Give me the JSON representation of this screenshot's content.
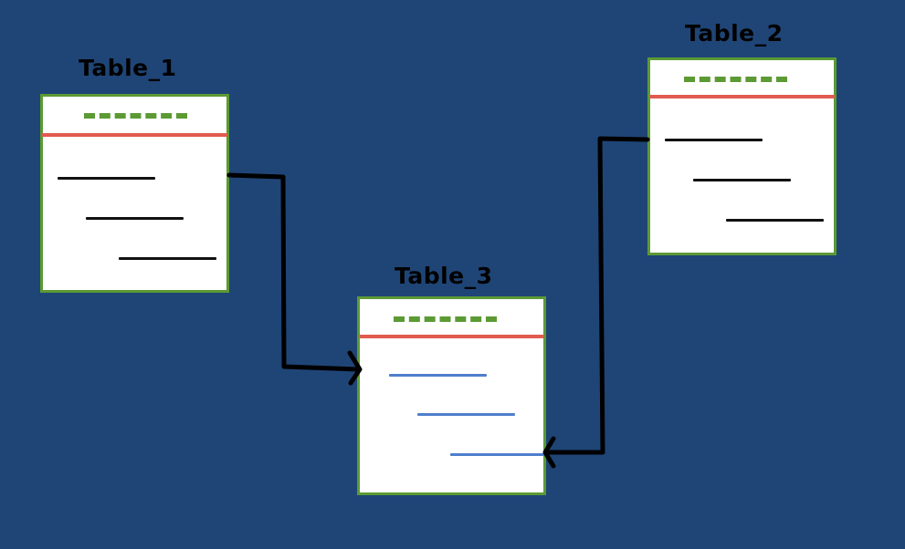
{
  "colors": {
    "background": "#1F4577",
    "table_border": "#5C9A34",
    "key_dashes": "#5C9A34",
    "header_separator": "#E15B4F",
    "field_line": "#111111",
    "field_line_highlight": "#4F7FCC",
    "connector": "#000000"
  },
  "tables": {
    "table_1": {
      "title": "Table_1"
    },
    "table_2": {
      "title": "Table_2"
    },
    "table_3": {
      "title": "Table_3"
    }
  },
  "relationships": [
    {
      "from": "Table_1",
      "to": "Table_3",
      "arrowhead": "open-arrow"
    },
    {
      "from": "Table_2",
      "to": "Table_3",
      "arrowhead": "open-arrow"
    }
  ]
}
